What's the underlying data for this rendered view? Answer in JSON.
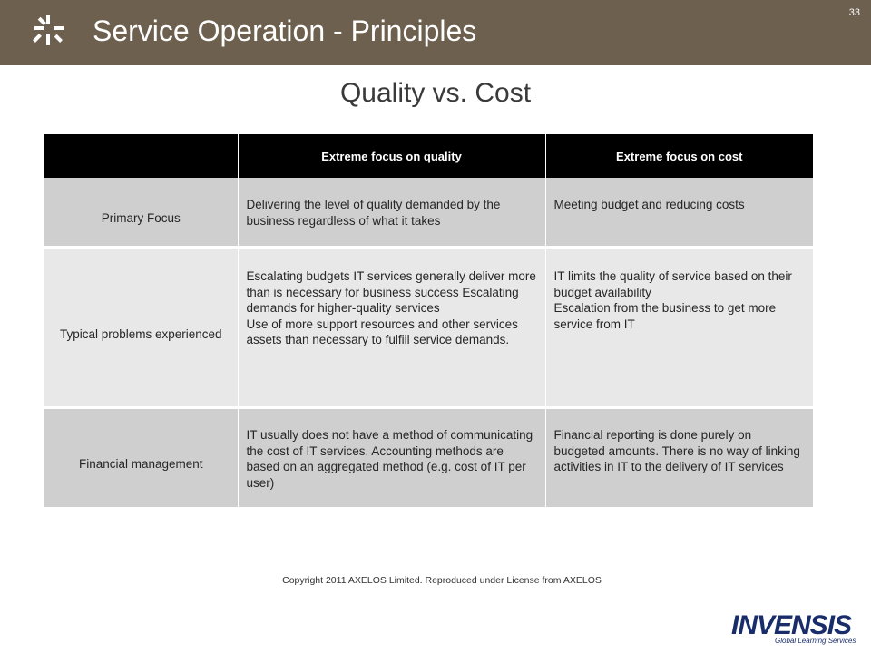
{
  "slide": {
    "title": "Service Operation - Principles",
    "page_number": "33",
    "subtitle": "Quality vs. Cost"
  },
  "table": {
    "headers": [
      "",
      "Extreme focus on quality",
      "Extreme focus on cost"
    ],
    "rows": [
      {
        "label": "Primary Focus",
        "quality": [
          "Delivering the level of quality demanded by the business regardless of what it takes"
        ],
        "cost": [
          "Meeting budget and reducing costs"
        ]
      },
      {
        "label": "Typical problems experienced",
        "quality": [
          "Escalating budgets IT services generally deliver more than is necessary for business success Escalating demands for higher-quality services",
          "Use of more support resources and other services assets than necessary to fulfill service demands."
        ],
        "cost": [
          "IT limits the quality of service based on their budget availability",
          "Escalation from the business to get more service from IT"
        ]
      },
      {
        "label": "Financial management",
        "quality": [
          "IT usually does not have a method of communicating the cost of IT services. Accounting methods are based on an aggregated method (e.g. cost of IT per user)"
        ],
        "cost": [
          "Financial reporting is done purely on budgeted amounts. There is no way of linking activities in IT to the delivery of IT services"
        ]
      }
    ]
  },
  "footer": {
    "copyright": "Copyright 2011 AXELOS Limited. Reproduced under License from AXELOS",
    "brand_name": "INVENSIS",
    "brand_tagline": "Global Learning Services"
  },
  "colors": {
    "header_bg": "#6e604f",
    "table_header_bg": "#000000",
    "row_dark": "#cfcfcf",
    "row_light": "#e8e8e8",
    "brand_blue": "#1a2d6b"
  },
  "icons": {
    "header_logo": "starburst-icon"
  }
}
